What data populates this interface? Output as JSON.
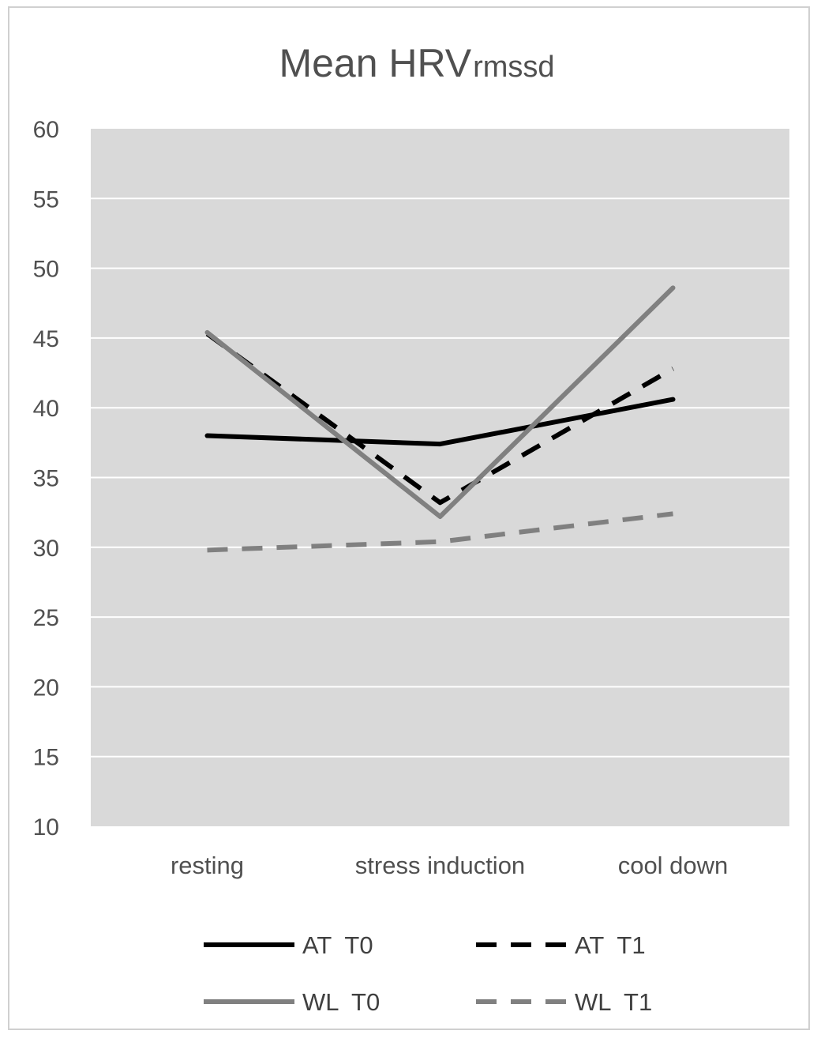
{
  "chart_data": {
    "type": "line",
    "title": "Mean HRV",
    "title_subscript": "rmssd",
    "xlabel": "",
    "ylabel": "",
    "categories": [
      "resting",
      "stress induction",
      "cool down"
    ],
    "ylim": [
      10,
      60
    ],
    "yticks": [
      "60",
      "55",
      "50",
      "45",
      "40",
      "35",
      "30",
      "25",
      "20",
      "15",
      "10"
    ],
    "grid": true,
    "plot_background": "#d9d9d9",
    "legend_position": "bottom",
    "series": [
      {
        "name": "AT  T0",
        "values": [
          38.0,
          37.4,
          40.6
        ],
        "color": "#000000",
        "dash": "solid"
      },
      {
        "name": "AT  T1",
        "values": [
          45.3,
          33.2,
          42.8
        ],
        "color": "#000000",
        "dash": "dashed"
      },
      {
        "name": "WL  T0",
        "values": [
          45.4,
          32.2,
          48.6
        ],
        "color": "#808080",
        "dash": "solid"
      },
      {
        "name": "WL  T1",
        "values": [
          29.8,
          30.4,
          32.4
        ],
        "color": "#808080",
        "dash": "dashed"
      }
    ]
  }
}
